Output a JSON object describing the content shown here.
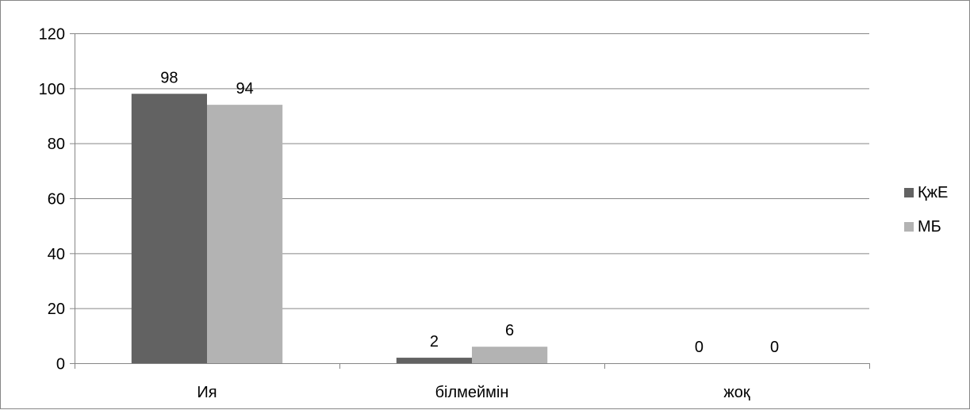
{
  "chart_data": {
    "type": "bar",
    "categories": [
      "Ия",
      "білмеймін",
      "жоқ"
    ],
    "series": [
      {
        "name": "ҚжЕ",
        "values": [
          98,
          2,
          0
        ],
        "color": "#626262"
      },
      {
        "name": "МБ",
        "values": [
          94,
          6,
          0
        ],
        "color": "#b3b3b3"
      }
    ],
    "ylim": [
      0,
      120
    ],
    "yticks": [
      0,
      20,
      40,
      60,
      80,
      100,
      120
    ],
    "grid": true,
    "legend_position": "right",
    "data_labels": true,
    "gridline_color": "#868686"
  }
}
